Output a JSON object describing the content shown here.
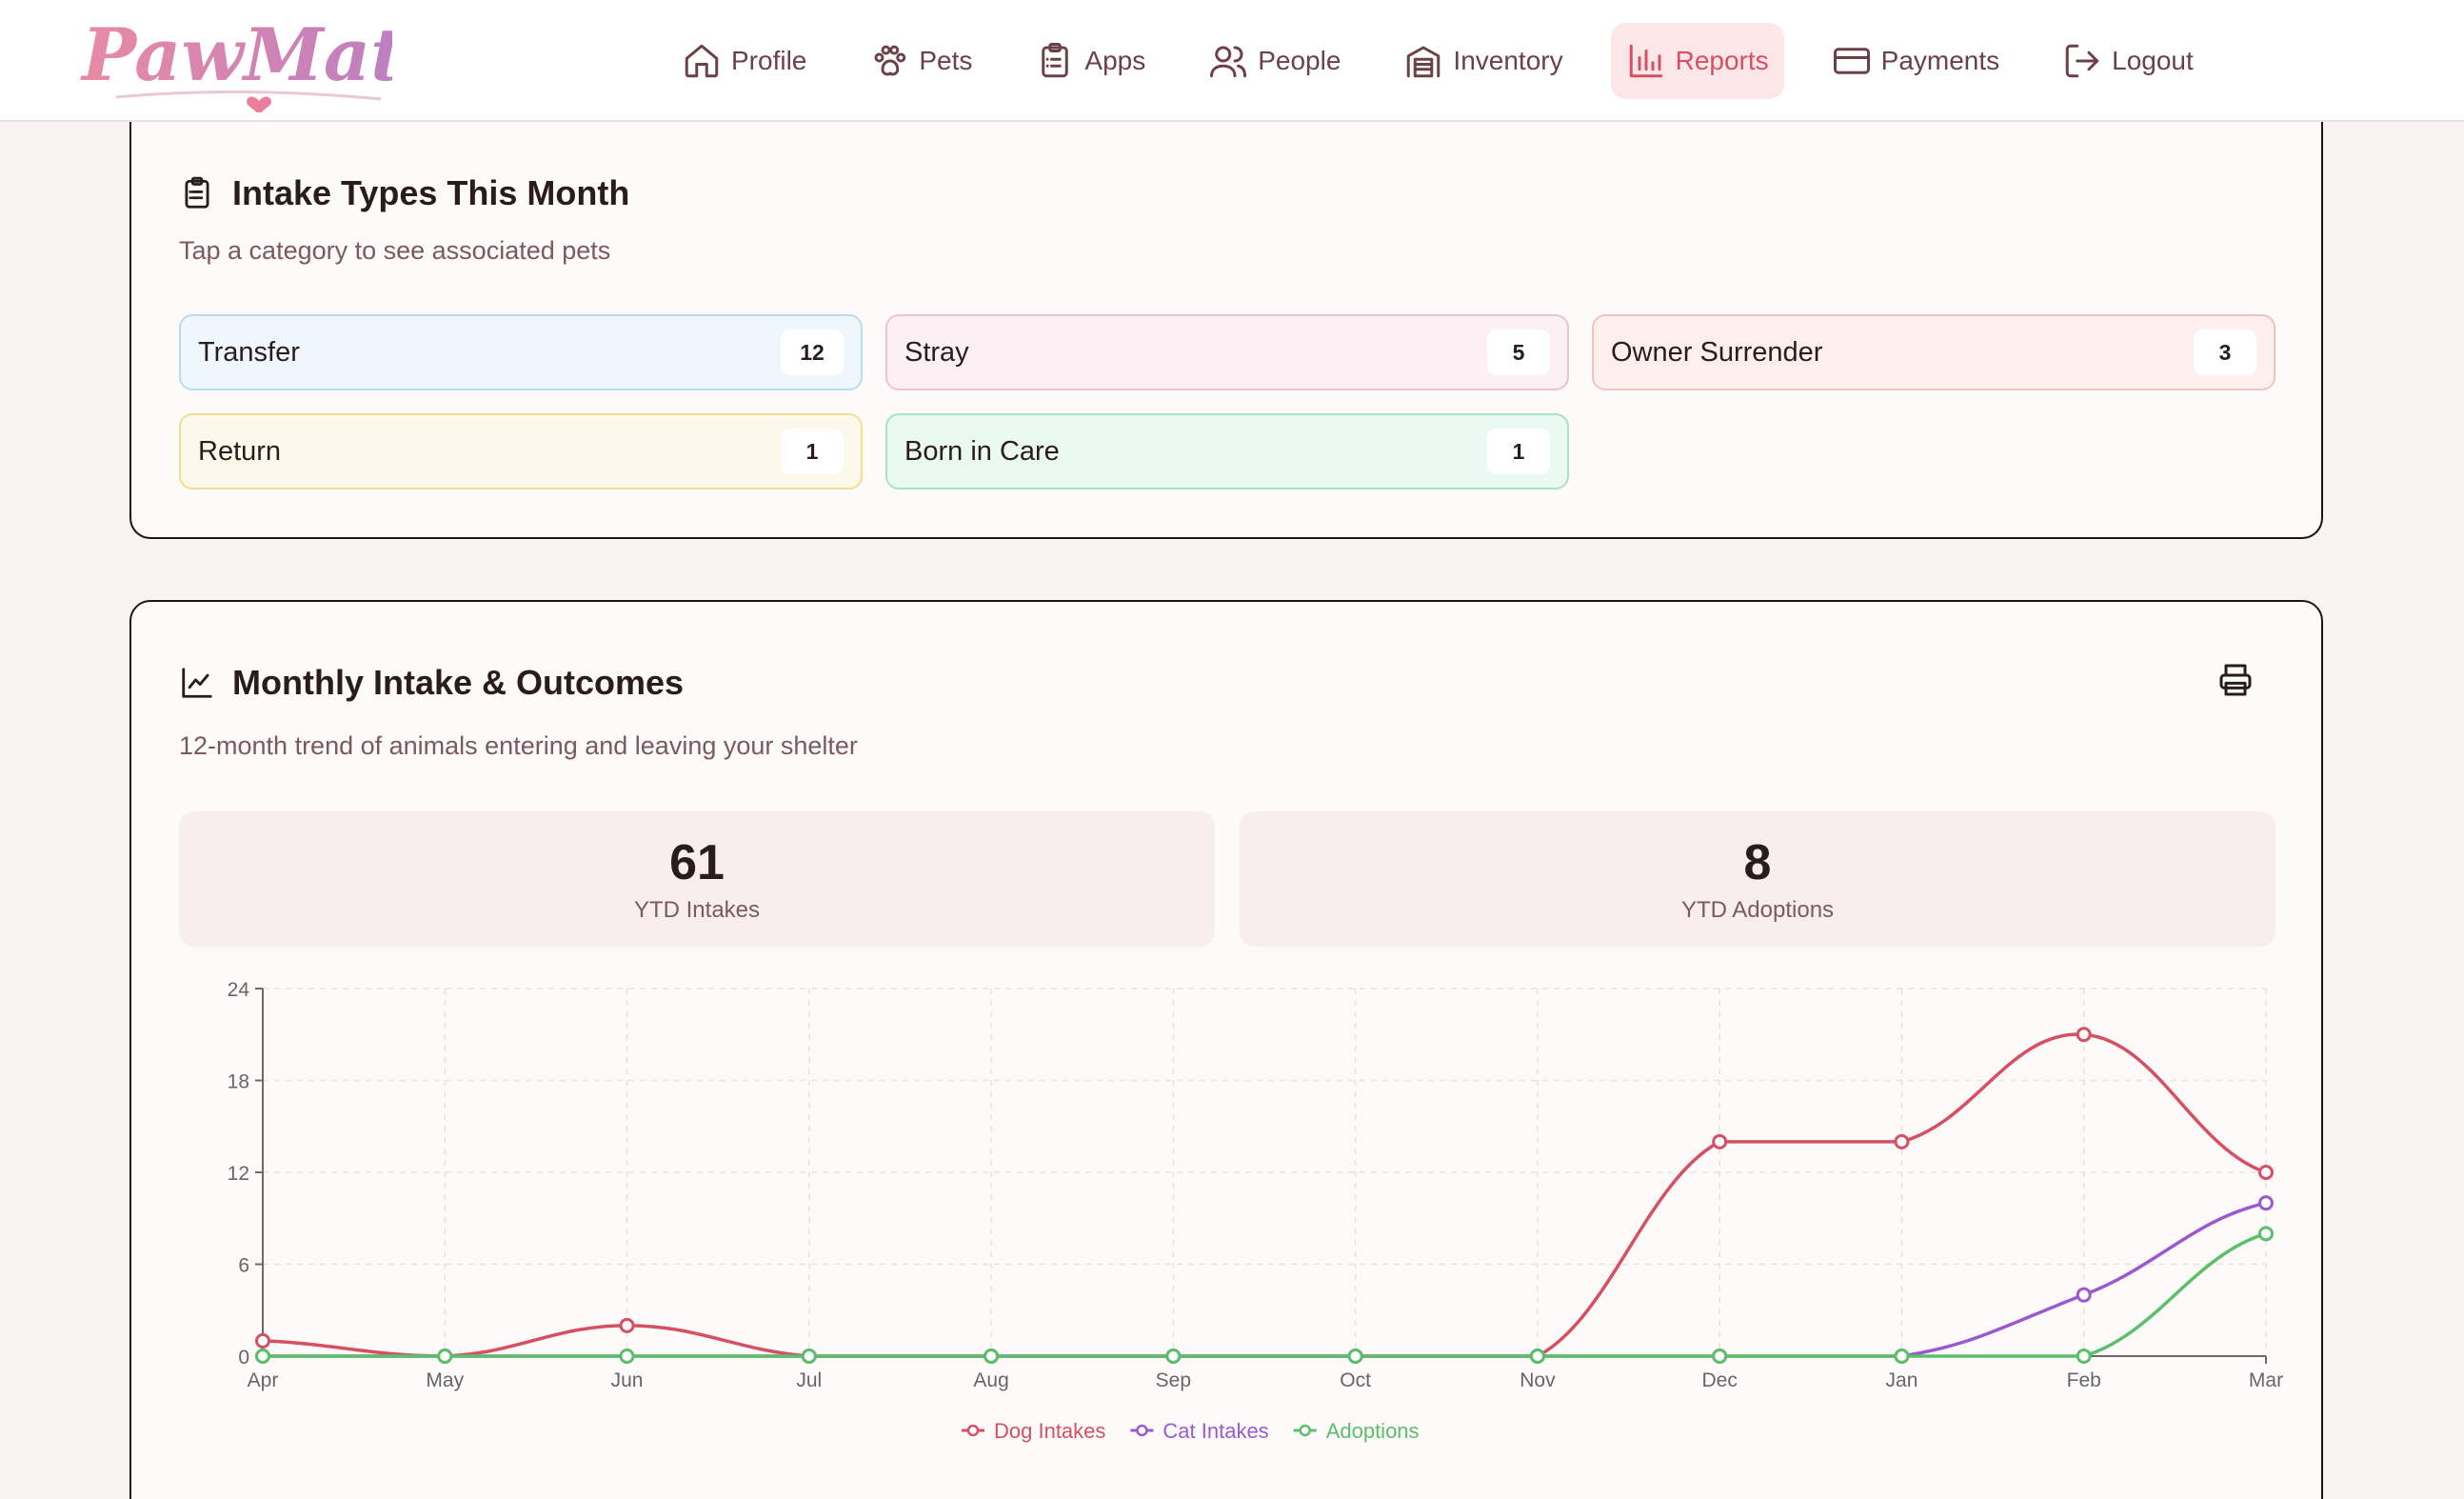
{
  "brand": {
    "logo_text": "PawMates"
  },
  "nav": {
    "items": [
      {
        "label": "Profile",
        "icon": "home-icon"
      },
      {
        "label": "Pets",
        "icon": "paw-icon"
      },
      {
        "label": "Apps",
        "icon": "clipboard-icon"
      },
      {
        "label": "People",
        "icon": "users-icon"
      },
      {
        "label": "Inventory",
        "icon": "warehouse-icon"
      },
      {
        "label": "Reports",
        "icon": "bar-chart-icon",
        "active": true
      },
      {
        "label": "Payments",
        "icon": "credit-card-icon"
      },
      {
        "label": "Logout",
        "icon": "logout-icon"
      }
    ]
  },
  "intake_card": {
    "title": "Intake Types This Month",
    "subtitle": "Tap a category to see associated pets",
    "icon": "clipboard-list-icon",
    "categories": [
      {
        "label": "Transfer",
        "count": "12",
        "color": "#b9dcef"
      },
      {
        "label": "Stray",
        "count": "5",
        "color": "#ecc3d6"
      },
      {
        "label": "Owner Surrender",
        "count": "3",
        "color": "#f0c4c6"
      },
      {
        "label": "Return",
        "count": "1",
        "color": "#f2de93"
      },
      {
        "label": "Born in Care",
        "count": "1",
        "color": "#a7e3c4"
      }
    ]
  },
  "trend_card": {
    "title": "Monthly Intake & Outcomes",
    "subtitle": "12-month trend of animals entering and leaving your shelter",
    "icon": "line-chart-icon",
    "print_icon": "printer-icon",
    "stats": [
      {
        "value": "61",
        "label": "YTD Intakes"
      },
      {
        "value": "8",
        "label": "YTD Adoptions"
      }
    ]
  },
  "chart_data": {
    "type": "line",
    "categories": [
      "Apr",
      "May",
      "Jun",
      "Jul",
      "Aug",
      "Sep",
      "Oct",
      "Nov",
      "Dec",
      "Jan",
      "Feb",
      "Mar"
    ],
    "series": [
      {
        "name": "Dog Intakes",
        "color": "#d64f63",
        "values": [
          1,
          0,
          2,
          0,
          0,
          0,
          0,
          0,
          14,
          14,
          21,
          12
        ]
      },
      {
        "name": "Cat Intakes",
        "color": "#9b59d0",
        "values": [
          0,
          0,
          0,
          0,
          0,
          0,
          0,
          0,
          0,
          0,
          4,
          10
        ]
      },
      {
        "name": "Adoptions",
        "color": "#5cbf6a",
        "values": [
          0,
          0,
          0,
          0,
          0,
          0,
          0,
          0,
          0,
          0,
          0,
          8
        ]
      }
    ],
    "y_ticks": [
      "0",
      "6",
      "12",
      "18",
      "24"
    ],
    "ylim": [
      0,
      24
    ],
    "grid": true,
    "legend_position": "bottom-center"
  }
}
